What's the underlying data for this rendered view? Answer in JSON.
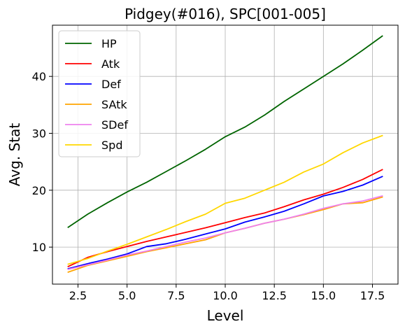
{
  "chart_data": {
    "type": "line",
    "title": "Pidgey(#016), SPC[001-005]",
    "xlabel": "Level",
    "ylabel": "Avg. Stat",
    "xlim": [
      1.2,
      18.8
    ],
    "ylim": [
      3.5,
      49.0
    ],
    "x_ticks": [
      2.5,
      5.0,
      7.5,
      10.0,
      12.5,
      15.0,
      17.5
    ],
    "x_tick_labels": [
      "2.5",
      "5.0",
      "7.5",
      "10.0",
      "12.5",
      "15.0",
      "17.5"
    ],
    "y_ticks": [
      10,
      20,
      30,
      40
    ],
    "y_tick_labels": [
      "10",
      "20",
      "30",
      "40"
    ],
    "grid": true,
    "legend_position": "top-left",
    "x": [
      2,
      3,
      4,
      5,
      6,
      7,
      8,
      9,
      10,
      11,
      12,
      13,
      14,
      15,
      16,
      17,
      18
    ],
    "series": [
      {
        "name": "HP",
        "color": "#006400",
        "values": [
          13.5,
          15.8,
          17.8,
          19.7,
          21.4,
          23.3,
          25.2,
          27.2,
          29.4,
          31.1,
          33.2,
          35.6,
          37.8,
          40.0,
          42.2,
          44.6,
          47.1
        ]
      },
      {
        "name": "Atk",
        "color": "#ff0000",
        "values": [
          6.6,
          8.2,
          9.2,
          10.1,
          11.0,
          11.8,
          12.6,
          13.4,
          14.3,
          15.2,
          16.0,
          17.1,
          18.3,
          19.3,
          20.5,
          21.9,
          23.6
        ]
      },
      {
        "name": "Def",
        "color": "#0000ff",
        "values": [
          6.2,
          7.1,
          7.9,
          8.8,
          10.1,
          10.6,
          11.4,
          12.3,
          13.2,
          14.4,
          15.3,
          16.3,
          17.6,
          19.0,
          19.8,
          20.9,
          22.4
        ]
      },
      {
        "name": "SAtk",
        "color": "#ffa500",
        "values": [
          5.6,
          6.8,
          7.6,
          8.4,
          9.2,
          9.9,
          10.6,
          11.3,
          12.5,
          13.3,
          14.2,
          14.9,
          15.7,
          16.6,
          17.6,
          17.8,
          18.8
        ]
      },
      {
        "name": "SDef",
        "color": "#ee82ee",
        "values": [
          6.1,
          6.9,
          7.7,
          8.6,
          9.3,
          10.1,
          10.9,
          11.6,
          12.5,
          13.3,
          14.2,
          14.9,
          15.8,
          16.8,
          17.6,
          18.1,
          19.0
        ]
      },
      {
        "name": "Spd",
        "color": "#ffd700",
        "values": [
          7.0,
          8.0,
          9.3,
          10.5,
          11.8,
          13.1,
          14.5,
          15.8,
          17.7,
          18.6,
          20.0,
          21.4,
          23.2,
          24.6,
          26.6,
          28.3,
          29.6
        ]
      }
    ]
  }
}
